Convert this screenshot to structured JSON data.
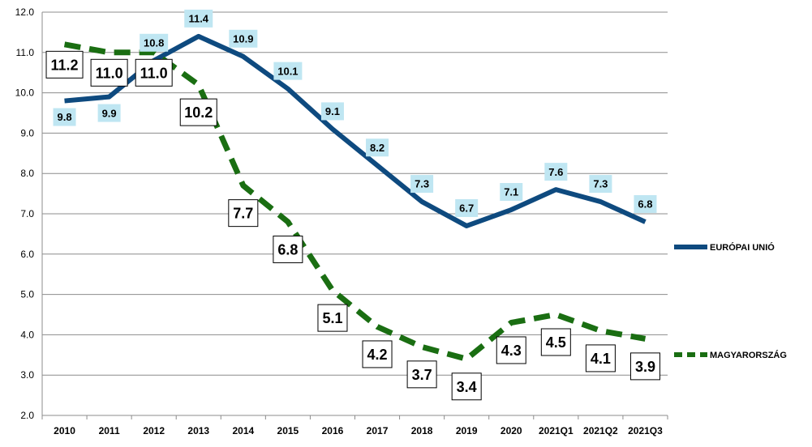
{
  "chart_data": {
    "type": "line",
    "title": "",
    "xlabel": "",
    "ylabel": "",
    "categories": [
      "2010",
      "2011",
      "2012",
      "2013",
      "2014",
      "2015",
      "2016",
      "2017",
      "2018",
      "2019",
      "2020",
      "2021Q1",
      "2021Q2",
      "2021Q3"
    ],
    "ylim": [
      2.0,
      12.0
    ],
    "yticks": [
      "2.0",
      "3.0",
      "4.0",
      "5.0",
      "6.0",
      "7.0",
      "8.0",
      "9.0",
      "10.0",
      "11.0",
      "12.0"
    ],
    "grid": true,
    "legend_position": "right",
    "series": [
      {
        "name": "EURÓPAI UNIÓ",
        "color": "#0e4a7f",
        "line_style": "solid",
        "label_bg": "#bfe6f2",
        "values": [
          9.8,
          9.9,
          10.8,
          11.4,
          10.9,
          10.1,
          9.1,
          8.2,
          7.3,
          6.7,
          7.1,
          7.6,
          7.3,
          6.8
        ],
        "labels": [
          "9.8",
          "9.9",
          "10.8",
          "11.4",
          "10.9",
          "10.1",
          "9.1",
          "8.2",
          "7.3",
          "6.7",
          "7.1",
          "7.6",
          "7.3",
          "6.8"
        ]
      },
      {
        "name": "MAGYARORSZÁG",
        "color": "#1a6e12",
        "line_style": "dashed",
        "label_bg": "#ffffff",
        "values": [
          11.2,
          11.0,
          11.0,
          10.2,
          7.7,
          6.8,
          5.1,
          4.2,
          3.7,
          3.4,
          4.3,
          4.5,
          4.1,
          3.9
        ],
        "labels": [
          "11.2",
          "11.0",
          "11.0",
          "10.2",
          "7.7",
          "6.8",
          "5.1",
          "4.2",
          "3.7",
          "3.4",
          "4.3",
          "4.5",
          "4.1",
          "3.9"
        ]
      }
    ]
  }
}
